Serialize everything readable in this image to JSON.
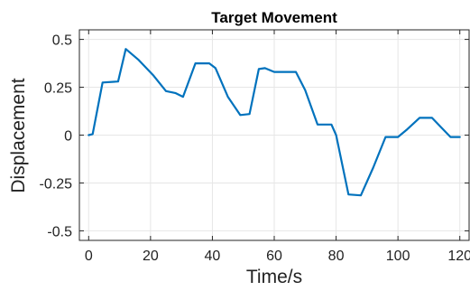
{
  "chart_data": {
    "type": "line",
    "title": "Target Movement",
    "xlabel": "Time/s",
    "ylabel": "Displacement",
    "xlim": [
      -3,
      123
    ],
    "ylim": [
      -0.55,
      0.55
    ],
    "xticks": [
      0,
      20,
      40,
      60,
      80,
      100,
      120
    ],
    "xtick_labels": [
      "0",
      "20",
      "40",
      "60",
      "80",
      "100",
      "120"
    ],
    "yticks": [
      0.5,
      0.25,
      0,
      -0.25,
      -0.5
    ],
    "ytick_labels": [
      "0.5",
      "0.25",
      "0",
      "-0.25",
      "-0.5"
    ],
    "grid": true,
    "series": [
      {
        "color": "#0072bd",
        "x": [
          0,
          1.3,
          4.5,
          9.5,
          12,
          16,
          21,
          25,
          28,
          30.5,
          34.5,
          39,
          41,
          45,
          49,
          52,
          55,
          57,
          60,
          67,
          70,
          74,
          78.5,
          80,
          84,
          88,
          92,
          96,
          100,
          103,
          107,
          111,
          114,
          117,
          120
        ],
        "y": [
          0,
          0.005,
          0.275,
          0.28,
          0.45,
          0.395,
          0.31,
          0.23,
          0.22,
          0.2,
          0.375,
          0.375,
          0.35,
          0.2,
          0.105,
          0.11,
          0.345,
          0.35,
          0.33,
          0.33,
          0.235,
          0.055,
          0.055,
          0.0,
          -0.31,
          -0.315,
          -0.17,
          -0.01,
          -0.01,
          0.03,
          0.09,
          0.09,
          0.04,
          -0.01,
          -0.01
        ]
      }
    ]
  }
}
